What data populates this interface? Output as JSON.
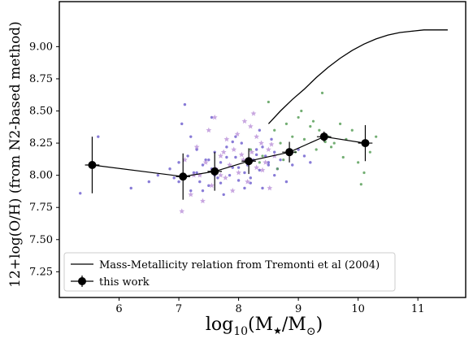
{
  "chart_data": {
    "type": "scatter",
    "xlabel_parts": {
      "pre": "log",
      "sub": "10",
      "mid1": "(M",
      "star": "★",
      "mid2": "/M",
      "sun": "⊙",
      "post": ")"
    },
    "ylabel": "12+log(O/H) (from N2-based method)",
    "xlim": [
      5.0,
      11.8
    ],
    "ylim": [
      7.05,
      9.35
    ],
    "xticks": [
      6,
      7,
      8,
      9,
      10,
      11
    ],
    "yticks": [
      7.25,
      7.5,
      7.75,
      8.0,
      8.25,
      8.5,
      8.75,
      9.0
    ],
    "ytick_labels": [
      "7.25",
      "7.50",
      "7.75",
      "8.00",
      "8.25",
      "8.50",
      "8.75",
      "9.00"
    ],
    "legend": {
      "location": "lower-left",
      "entries": [
        {
          "label": "Mass-Metallicity relation from Tremonti et al (2004)",
          "marker": "line"
        },
        {
          "label": "this work",
          "marker": "errorbar"
        }
      ]
    },
    "colors": {
      "purple": "#6a5acd",
      "lavender": "#b58ad6",
      "green": "#5aa05a",
      "line": "#000000"
    },
    "tremonti": {
      "x": [
        8.5,
        8.7,
        8.9,
        9.1,
        9.3,
        9.5,
        9.7,
        9.9,
        10.1,
        10.3,
        10.5,
        10.7,
        10.9,
        11.1,
        11.3,
        11.5
      ],
      "y": [
        8.4,
        8.5,
        8.59,
        8.67,
        8.76,
        8.84,
        8.91,
        8.97,
        9.02,
        9.06,
        9.09,
        9.11,
        9.12,
        9.13,
        9.13,
        9.13
      ]
    },
    "binned": {
      "x": [
        5.55,
        7.07,
        7.6,
        8.17,
        8.85,
        9.43,
        10.12
      ],
      "y": [
        8.08,
        7.99,
        8.03,
        8.11,
        8.18,
        8.3,
        8.25
      ],
      "yerr": [
        0.22,
        0.18,
        0.15,
        0.1,
        0.08,
        0.04,
        0.14
      ],
      "xerr": [
        0.12,
        0.12,
        0.12,
        0.12,
        0.12,
        0.12,
        0.12
      ]
    },
    "scatter_purple": {
      "x": [
        5.35,
        5.65,
        6.2,
        6.5,
        6.65,
        6.85,
        6.92,
        7.0,
        7.1,
        7.15,
        7.2,
        7.25,
        7.3,
        7.35,
        7.4,
        7.45,
        7.5,
        7.55,
        7.6,
        7.65,
        7.7,
        7.75,
        7.8,
        7.85,
        7.9,
        7.95,
        8.0,
        8.05,
        8.1,
        8.15,
        8.2,
        8.25,
        8.3,
        8.35,
        8.4,
        8.45,
        8.5,
        8.55,
        8.6,
        8.65,
        8.7,
        8.8,
        8.9,
        9.0,
        9.1,
        9.2,
        7.0,
        7.2,
        7.4,
        7.6,
        7.8,
        8.0,
        8.2,
        8.4,
        8.6,
        7.3,
        7.5,
        7.7,
        7.9,
        8.1,
        8.3,
        8.5,
        7.05,
        7.55,
        7.95,
        8.35
      ],
      "y": [
        7.86,
        8.3,
        7.9,
        7.95,
        8.0,
        8.05,
        7.98,
        8.1,
        8.55,
        8.15,
        7.88,
        8.02,
        8.2,
        7.95,
        8.08,
        8.12,
        7.92,
        8.05,
        8.18,
        7.98,
        8.1,
        7.85,
        8.22,
        8.0,
        8.06,
        8.14,
        7.96,
        8.25,
        8.02,
        8.08,
        7.94,
        8.12,
        8.2,
        8.04,
        7.9,
        8.15,
        8.1,
        8.28,
        8.0,
        8.05,
        8.12,
        7.95,
        8.08,
        8.2,
        8.15,
        8.1,
        7.95,
        8.3,
        7.88,
        8.0,
        8.14,
        8.06,
        7.98,
        8.22,
        8.18,
        8.02,
        8.12,
        7.94,
        8.26,
        7.9,
        8.16,
        8.08,
        8.4,
        8.45,
        8.3,
        8.35
      ],
      "star_x": [
        7.05,
        7.2,
        7.35,
        7.45,
        7.55,
        7.62,
        7.7,
        7.78,
        7.85,
        7.92,
        8.0,
        8.08,
        8.15,
        8.22,
        8.3,
        8.38,
        8.45,
        8.52,
        8.6,
        7.3,
        7.5,
        7.7,
        7.9,
        8.1,
        8.3,
        8.5,
        7.4,
        7.8,
        8.2,
        8.4,
        7.6,
        8.05,
        7.1,
        8.55,
        7.25,
        7.75,
        8.25,
        7.98
      ],
      "star_y": [
        7.72,
        7.85,
        8.0,
        8.1,
        7.92,
        8.05,
        8.15,
        7.98,
        8.08,
        8.2,
        8.02,
        8.12,
        7.95,
        8.18,
        8.06,
        8.25,
        8.1,
        7.9,
        8.15,
        8.22,
        8.35,
        8.0,
        7.88,
        8.42,
        8.3,
        8.2,
        7.8,
        8.28,
        8.38,
        8.04,
        8.45,
        8.16,
        8.12,
        8.24,
        8.0,
        8.18,
        8.48,
        8.32
      ]
    },
    "scatter_green": {
      "x": [
        8.2,
        8.4,
        8.6,
        8.7,
        8.8,
        8.9,
        9.0,
        9.1,
        9.2,
        9.3,
        9.4,
        9.5,
        9.6,
        9.7,
        9.8,
        9.9,
        10.0,
        10.1,
        10.2,
        10.3,
        8.5,
        8.75,
        9.05,
        9.35,
        9.55,
        9.75,
        10.05,
        8.65,
        8.95,
        9.25,
        9.45,
        8.35
      ],
      "y": [
        8.2,
        8.15,
        8.35,
        8.25,
        8.4,
        8.3,
        8.45,
        8.28,
        8.38,
        8.2,
        8.64,
        8.3,
        8.25,
        8.4,
        8.28,
        8.35,
        8.1,
        8.02,
        8.18,
        8.3,
        8.57,
        8.12,
        8.5,
        8.35,
        8.22,
        8.14,
        7.93,
        8.05,
        8.18,
        8.42,
        8.26,
        8.1
      ]
    }
  }
}
